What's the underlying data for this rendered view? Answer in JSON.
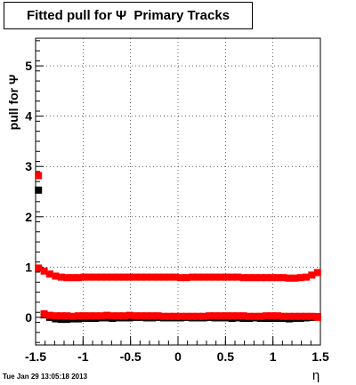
{
  "title": "Fitted pull for Ψ  Primary Tracks",
  "timestamp": "Tue Jan 29 13:05:18 2013",
  "chart_data": {
    "type": "scatter",
    "title": "Fitted pull for Ψ  Primary Tracks",
    "xlabel": "η",
    "ylabel": "pull for Ψ",
    "xlim": [
      -1.5,
      1.5
    ],
    "ylim": [
      -0.55,
      5.55
    ],
    "x_ticks": [
      "-1.5",
      "-1",
      "-0.5",
      "0",
      "0.5",
      "1",
      "1.5"
    ],
    "y_ticks": [
      "0",
      "1",
      "2",
      "3",
      "4",
      "5"
    ],
    "x": [
      -1.47,
      -1.41,
      -1.35,
      -1.29,
      -1.23,
      -1.17,
      -1.11,
      -1.05,
      -0.99,
      -0.93,
      -0.87,
      -0.81,
      -0.75,
      -0.69,
      -0.63,
      -0.57,
      -0.51,
      -0.45,
      -0.39,
      -0.33,
      -0.27,
      -0.21,
      -0.15,
      -0.09,
      -0.03,
      0.03,
      0.09,
      0.15,
      0.21,
      0.27,
      0.33,
      0.39,
      0.45,
      0.51,
      0.57,
      0.63,
      0.69,
      0.75,
      0.81,
      0.87,
      0.93,
      0.99,
      1.05,
      1.11,
      1.17,
      1.23,
      1.29,
      1.35,
      1.41,
      1.47
    ],
    "series": [
      {
        "color": "#000000",
        "marker": "square",
        "values": [
          2.53,
          0.05,
          0.0,
          -0.03,
          -0.04,
          -0.04,
          -0.03,
          -0.03,
          -0.02,
          -0.02,
          -0.02,
          -0.01,
          -0.01,
          -0.02,
          -0.01,
          -0.01,
          -0.01,
          0.0,
          0.0,
          -0.01,
          -0.01,
          0.0,
          -0.01,
          -0.01,
          -0.01,
          -0.01,
          0.0,
          -0.01,
          -0.01,
          -0.01,
          0.0,
          -0.01,
          -0.01,
          -0.01,
          -0.02,
          -0.01,
          -0.02,
          -0.02,
          -0.01,
          -0.02,
          -0.02,
          -0.02,
          -0.02,
          -0.02,
          -0.03,
          -0.02,
          -0.02,
          -0.01,
          0.0,
          0.01
        ]
      },
      {
        "color": "#ff0000",
        "marker": "square",
        "values": [
          2.82,
          0.07,
          0.04,
          0.03,
          0.03,
          0.03,
          0.02,
          0.03,
          0.03,
          0.03,
          0.03,
          0.03,
          0.04,
          0.03,
          0.03,
          0.03,
          0.04,
          0.03,
          0.03,
          0.03,
          0.03,
          0.03,
          0.02,
          0.02,
          0.02,
          0.02,
          0.02,
          0.02,
          0.02,
          0.02,
          0.03,
          0.03,
          0.03,
          0.03,
          0.03,
          0.03,
          0.03,
          0.02,
          0.02,
          0.02,
          0.03,
          0.03,
          0.03,
          0.02,
          0.02,
          0.02,
          0.02,
          0.02,
          0.02,
          0.0
        ]
      },
      {
        "color": "#ff0000",
        "marker": "square",
        "values": [
          0.98,
          0.92,
          0.86,
          0.82,
          0.8,
          0.79,
          0.79,
          0.79,
          0.8,
          0.8,
          0.8,
          0.8,
          0.8,
          0.8,
          0.8,
          0.8,
          0.8,
          0.8,
          0.8,
          0.8,
          0.8,
          0.8,
          0.8,
          0.8,
          0.8,
          0.79,
          0.79,
          0.8,
          0.8,
          0.8,
          0.8,
          0.8,
          0.8,
          0.8,
          0.8,
          0.8,
          0.79,
          0.79,
          0.79,
          0.79,
          0.79,
          0.79,
          0.79,
          0.79,
          0.78,
          0.78,
          0.79,
          0.8,
          0.84,
          0.89
        ]
      }
    ]
  }
}
